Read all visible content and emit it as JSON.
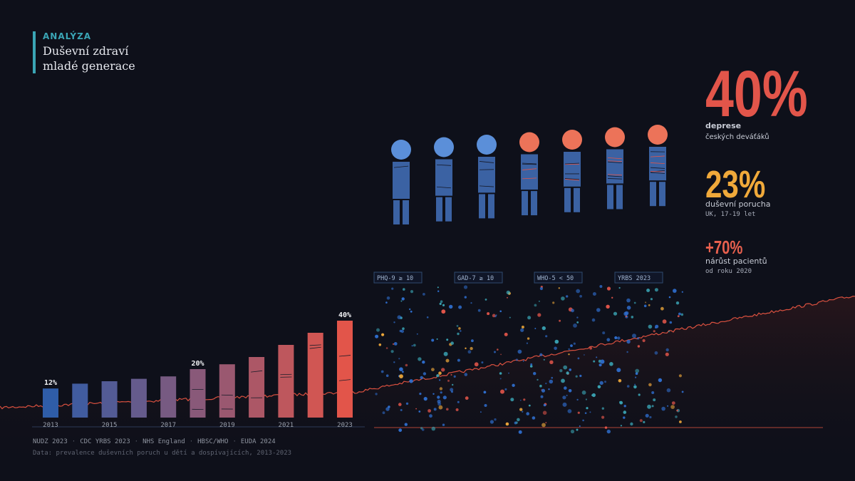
{
  "header": {
    "kicker": "ANALÝZA",
    "title": "Duševní zdraví mladé generace"
  },
  "stats": [
    {
      "value": "40%",
      "label": "deprese",
      "sub": "českých deváťáků",
      "color": "#e2554a"
    },
    {
      "value": "23%",
      "label": "duševní porucha",
      "sub": "UK, 17-19 let",
      "color": "#f0a93a"
    },
    {
      "value": "+70%",
      "label": "nárůst pacientů",
      "sub": "od roku 2020",
      "color": "#e8604e"
    }
  ],
  "chart_data": {
    "type": "bar",
    "title": "",
    "xlabel": "",
    "ylabel": "",
    "categories": [
      "2013",
      "2014",
      "2015",
      "2016",
      "2017",
      "2018",
      "2019",
      "2020",
      "2021",
      "2022",
      "2023"
    ],
    "tick_labels": [
      "2013",
      "2015",
      "2017",
      "2019",
      "2021",
      "2023"
    ],
    "values": [
      12,
      14,
      15,
      16,
      17,
      20,
      22,
      25,
      30,
      35,
      40
    ],
    "data_labels": [
      {
        "index": 0,
        "text": "12%"
      },
      {
        "index": 5,
        "text": "20%"
      },
      {
        "index": 10,
        "text": "40%"
      }
    ],
    "ylim": [
      0,
      40
    ],
    "grid": false,
    "colors": [
      "#2f5da8",
      "#e2554a"
    ]
  },
  "figures": {
    "count": 7,
    "cool_color": "#5b8fd9",
    "warm_color": "#ec7359",
    "body_color": "#3b62a3"
  },
  "scatter": {
    "labels": [
      "PHQ-9 ≥ 10",
      "GAD-7 ≥ 10",
      "WHO-5 < 50",
      "YRBS 2023"
    ],
    "dot_colors": [
      "#2f6fd0",
      "#3aa5b5",
      "#f0a93a",
      "#e2554a"
    ]
  },
  "footer": {
    "sources": [
      "NUDZ 2023",
      "CDC YRBS 2023",
      "NHS England",
      "HBSC/WHO",
      "EUDA 2024"
    ],
    "note": "Data: prevalence duševních poruch u dětí a dospívajících, 2013-2023"
  }
}
